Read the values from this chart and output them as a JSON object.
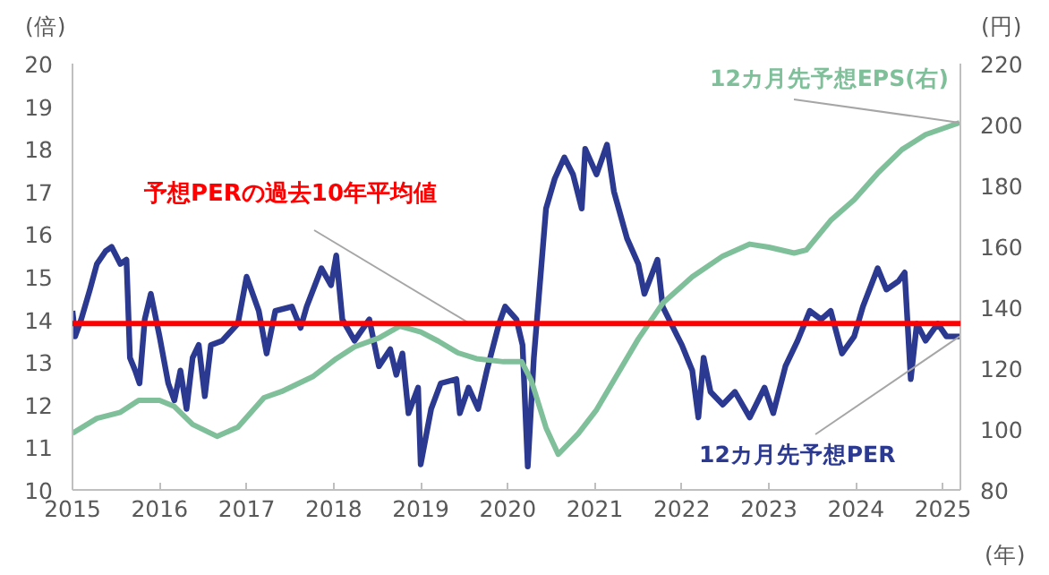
{
  "chart_data": {
    "type": "line",
    "xlabel": "(年)",
    "ylabel": "(倍)",
    "y2label": "(円)",
    "xlim": [
      2015,
      2025.2
    ],
    "xticks": [
      2015,
      2016,
      2017,
      2018,
      2019,
      2020,
      2021,
      2022,
      2023,
      2024,
      2025
    ],
    "ylim": [
      10,
      20
    ],
    "yticks": [
      10,
      11,
      12,
      13,
      14,
      15,
      16,
      17,
      18,
      19,
      20
    ],
    "y2lim": [
      80,
      220
    ],
    "y2ticks": [
      80,
      100,
      120,
      140,
      160,
      180,
      200,
      220
    ],
    "grid": false,
    "legend": false,
    "series": [
      {
        "name": "12カ月先予想PER",
        "color": "#2b3990",
        "x": [
          2015.0,
          2015.03,
          2015.1,
          2015.2,
          2015.28,
          2015.38,
          2015.45,
          2015.55,
          2015.62,
          2015.66,
          2015.72,
          2015.77,
          2015.83,
          2015.9,
          2016.0,
          2016.1,
          2016.17,
          2016.24,
          2016.31,
          2016.38,
          2016.45,
          2016.52,
          2016.59,
          2016.72,
          2016.9,
          2017.0,
          2017.14,
          2017.23,
          2017.33,
          2017.52,
          2017.62,
          2017.69,
          2017.86,
          2017.97,
          2018.03,
          2018.1,
          2018.24,
          2018.41,
          2018.52,
          2018.65,
          2018.72,
          2018.79,
          2018.86,
          2018.97,
          2019.0,
          2019.12,
          2019.23,
          2019.41,
          2019.45,
          2019.55,
          2019.66,
          2019.76,
          2019.9,
          2019.97,
          2020.1,
          2020.17,
          2020.23,
          2020.3,
          2020.44,
          2020.54,
          2020.65,
          2020.75,
          2020.85,
          2020.89,
          2021.02,
          2021.14,
          2021.22,
          2021.37,
          2021.5,
          2021.57,
          2021.72,
          2021.78,
          2021.95,
          2022.0,
          2022.12,
          2022.19,
          2022.25,
          2022.33,
          2022.47,
          2022.61,
          2022.78,
          2022.95,
          2023.05,
          2023.19,
          2023.33,
          2023.47,
          2023.6,
          2023.71,
          2023.84,
          2023.98,
          2024.08,
          2024.25,
          2024.35,
          2024.49,
          2024.56,
          2024.63,
          2024.7,
          2024.8,
          2024.94,
          2025.04,
          2025.19
        ],
        "values": [
          14.2,
          13.6,
          14.0,
          14.7,
          15.3,
          15.6,
          15.7,
          15.3,
          15.4,
          13.1,
          12.8,
          12.5,
          14.0,
          14.6,
          13.6,
          12.5,
          12.1,
          12.8,
          11.9,
          13.1,
          13.4,
          12.2,
          13.4,
          13.5,
          13.9,
          15.0,
          14.2,
          13.2,
          14.2,
          14.3,
          13.8,
          14.3,
          15.2,
          14.8,
          15.5,
          14.0,
          13.5,
          14.0,
          12.9,
          13.3,
          12.7,
          13.2,
          11.8,
          12.4,
          10.6,
          11.9,
          12.5,
          12.6,
          11.8,
          12.4,
          11.9,
          12.8,
          13.9,
          14.3,
          14.0,
          13.4,
          10.55,
          13.1,
          16.6,
          17.3,
          17.8,
          17.4,
          16.6,
          18.0,
          17.4,
          18.1,
          17.0,
          15.9,
          15.3,
          14.6,
          15.4,
          14.3,
          13.6,
          13.4,
          12.8,
          11.7,
          13.1,
          12.3,
          12.0,
          12.3,
          11.7,
          12.4,
          11.8,
          12.9,
          13.5,
          14.2,
          14.0,
          14.2,
          13.2,
          13.6,
          14.3,
          15.2,
          14.7,
          14.9,
          15.1,
          12.6,
          13.9,
          13.5,
          13.9,
          13.6,
          13.6
        ]
      },
      {
        "name": "12カ月先予想EPS(右)",
        "color": "#7fbf9a",
        "axis": "y2",
        "x": [
          2015.0,
          2015.28,
          2015.55,
          2015.76,
          2016.0,
          2016.17,
          2016.38,
          2016.66,
          2016.9,
          2017.2,
          2017.4,
          2017.76,
          2018.03,
          2018.24,
          2018.52,
          2018.76,
          2019.0,
          2019.2,
          2019.43,
          2019.64,
          2019.95,
          2020.16,
          2020.27,
          2020.44,
          2020.58,
          2020.81,
          2021.02,
          2021.22,
          2021.5,
          2021.78,
          2022.12,
          2022.47,
          2022.78,
          2023.0,
          2023.29,
          2023.43,
          2023.71,
          2023.98,
          2024.25,
          2024.53,
          2024.8,
          2025.19
        ],
        "values": [
          98.6,
          103.5,
          105.5,
          109.4,
          109.4,
          107.4,
          101.5,
          97.6,
          100.6,
          110.3,
          112.3,
          117.2,
          123.1,
          127.0,
          129.9,
          133.8,
          131.9,
          128.9,
          125.0,
          123.1,
          122.1,
          122.1,
          116.0,
          100.4,
          91.7,
          98.5,
          106.3,
          116.0,
          129.6,
          141.3,
          150.0,
          156.8,
          160.7,
          159.7,
          157.8,
          158.8,
          168.5,
          175.3,
          184.0,
          191.8,
          196.7,
          200.6
        ]
      }
    ],
    "ref_lines": [
      {
        "axis": "y",
        "value": 13.9,
        "label": "予想PERの過去10年平均値",
        "color": "#ff0000"
      }
    ]
  }
}
